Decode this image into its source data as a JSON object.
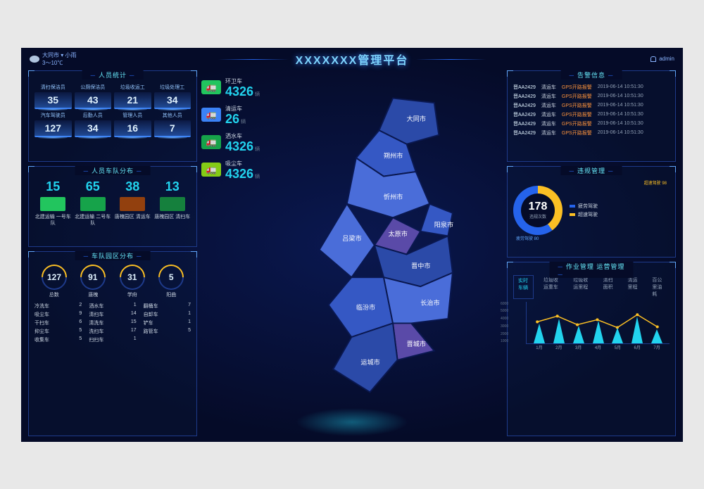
{
  "header": {
    "city": "大同市 ▾",
    "weather": "小雨",
    "temp": "3～10℃",
    "title": "XXXXXXX管理平台",
    "user": "admin"
  },
  "personnel": {
    "title": "人员统计",
    "items": [
      {
        "label": "清扫保洁员",
        "value": "35"
      },
      {
        "label": "公厕保洁员",
        "value": "43"
      },
      {
        "label": "垃圾收运工",
        "value": "21"
      },
      {
        "label": "垃圾处理工",
        "value": "34"
      },
      {
        "label": "汽车驾驶员",
        "value": "127"
      },
      {
        "label": "后勤人员",
        "value": "34"
      },
      {
        "label": "管理人员",
        "value": "16"
      },
      {
        "label": "其他人员",
        "value": "7"
      }
    ]
  },
  "fleet": {
    "title": "人员车队分布",
    "items": [
      {
        "num": "15",
        "name": "北建运输\n一号车队",
        "color": "#22c55e"
      },
      {
        "num": "65",
        "name": "北建运输\n二号车队",
        "color": "#16a34a"
      },
      {
        "num": "38",
        "name": "唐槐园区\n清运车",
        "color": "#92400e"
      },
      {
        "num": "13",
        "name": "唐槐园区\n清扫车",
        "color": "#15803d"
      }
    ]
  },
  "park": {
    "title": "车队园区分布",
    "gauges": [
      {
        "value": "127",
        "label": "总数"
      },
      {
        "value": "91",
        "label": "唐槐"
      },
      {
        "value": "31",
        "label": "学府"
      },
      {
        "value": "5",
        "label": "阳曲"
      }
    ],
    "list": [
      {
        "n": "冷洗车",
        "v": "2"
      },
      {
        "n": "洒水车",
        "v": "1"
      },
      {
        "n": "翻桶车",
        "v": "7"
      },
      {
        "n": "吸尘车",
        "v": "9"
      },
      {
        "n": "清扫车",
        "v": "14"
      },
      {
        "n": "自卸车",
        "v": "1"
      },
      {
        "n": "干扫车",
        "v": "6"
      },
      {
        "n": "清洗车",
        "v": "15"
      },
      {
        "n": "铲车",
        "v": "1"
      },
      {
        "n": "抑尘车",
        "v": "5"
      },
      {
        "n": "洗扫车",
        "v": "17"
      },
      {
        "n": "路管车",
        "v": "5"
      },
      {
        "n": "收集车",
        "v": "5"
      },
      {
        "n": "扫扫车",
        "v": "1"
      },
      {
        "n": "",
        "v": ""
      }
    ]
  },
  "vehicles": [
    {
      "label": "环卫车",
      "num": "4326",
      "unit": "辆",
      "color": "#22c55e"
    },
    {
      "label": "清运车",
      "num": "26",
      "unit": "辆",
      "color": "#3b82f6"
    },
    {
      "label": "洒水车",
      "num": "4326",
      "unit": "辆",
      "color": "#16a34a"
    },
    {
      "label": "吸尘车",
      "num": "4326",
      "unit": "辆",
      "color": "#84cc16"
    }
  ],
  "map": {
    "regions": [
      "大同市",
      "朔州市",
      "忻州市",
      "阳泉市",
      "太原市",
      "吕梁市",
      "晋中市",
      "临汾市",
      "长治市",
      "晋城市",
      "运城市"
    ]
  },
  "alerts": {
    "title": "告警信息",
    "rows": [
      {
        "plate": "晋AA2429",
        "type": "清运车",
        "msg": "GPS开路报警",
        "time": "2019-06-14 10:51:30"
      },
      {
        "plate": "晋AA2429",
        "type": "清运车",
        "msg": "GPS开路报警",
        "time": "2019-06-14 10:51:30"
      },
      {
        "plate": "晋AA2429",
        "type": "清运车",
        "msg": "GPS开路报警",
        "time": "2019-06-14 10:51:30"
      },
      {
        "plate": "晋AA2429",
        "type": "清运车",
        "msg": "GPS开路报警",
        "time": "2019-06-14 10:51:30"
      },
      {
        "plate": "晋AA2429",
        "type": "清运车",
        "msg": "GPS开路报警",
        "time": "2019-06-14 10:51:30"
      },
      {
        "plate": "晋AA2429",
        "type": "清运车",
        "msg": "GPS开路报警",
        "time": "2019-06-14 10:51:30"
      }
    ]
  },
  "violation": {
    "title": "违规管理",
    "total": "178",
    "total_label": "违规次数",
    "top_label": "超速驾驶 98",
    "bottom_label": "疲劳驾驶 80",
    "legend": [
      {
        "name": "疲劳驾驶",
        "color": "#2563eb"
      },
      {
        "name": "超速驾驶",
        "color": "#fbbf24"
      }
    ]
  },
  "ops": {
    "title": "作业管理  运营管理",
    "tabs": [
      "实时车辆",
      "垃圾收运重车",
      "垃圾收运里程",
      "清扫面积",
      "清运里程",
      "百公里油耗"
    ],
    "yticks": [
      "6000",
      "5000",
      "4000",
      "3000",
      "2000",
      "1000"
    ],
    "x": [
      "1月",
      "2月",
      "3月",
      "4月",
      "5月",
      "6月",
      "7月"
    ],
    "bars": [
      28,
      35,
      25,
      32,
      22,
      38,
      20
    ],
    "line": [
      32,
      40,
      28,
      35,
      24,
      42,
      25
    ],
    "bar_color": "#22d3ee",
    "line_color": "#fbbf24"
  }
}
